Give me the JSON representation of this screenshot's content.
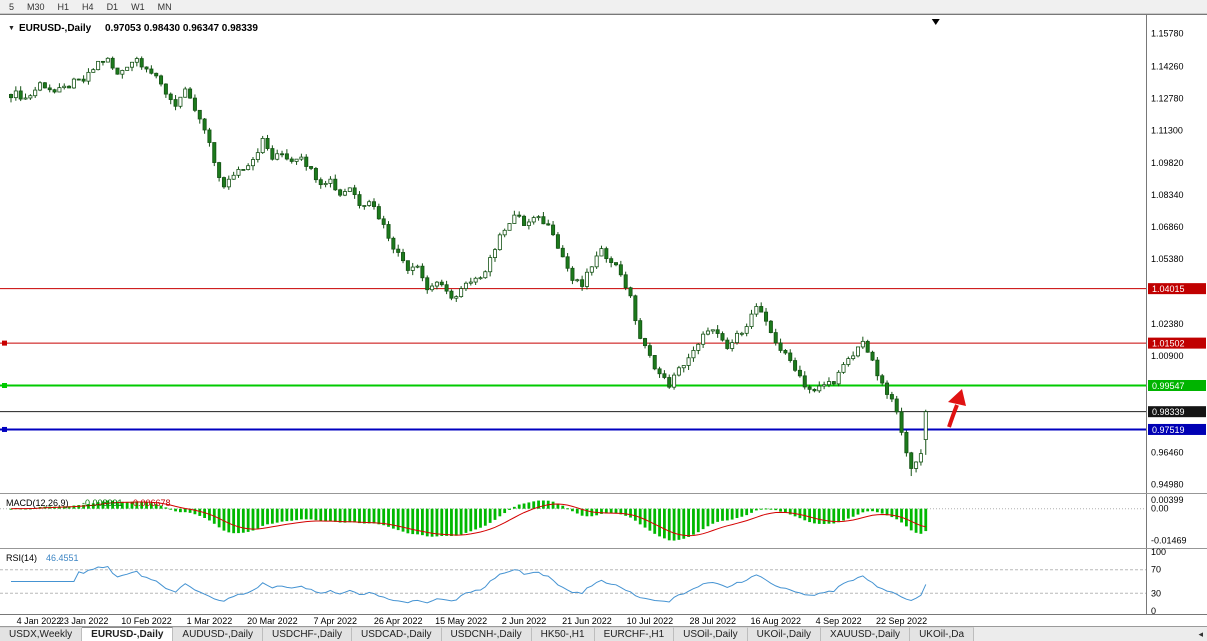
{
  "toolbar": {
    "periods": [
      "5",
      "M30",
      "H1",
      "H4",
      "D1",
      "W1",
      "MN"
    ]
  },
  "chart": {
    "symbol_icon": "▼",
    "title": "EURUSD-,Daily",
    "ohlc_text": "0.97053 0.98430 0.96347 0.98339",
    "last_bar": {
      "open": 0.97053,
      "high": 0.9843,
      "low": 0.96347,
      "close": 0.98339
    },
    "shift_marker": "▼"
  },
  "price_scale": {
    "ticks": [
      {
        "label": "1.15780",
        "value": 1.1578
      },
      {
        "label": "1.14260",
        "value": 1.1426
      },
      {
        "label": "1.12780",
        "value": 1.1278
      },
      {
        "label": "1.11300",
        "value": 1.113
      },
      {
        "label": "1.09820",
        "value": 1.0982
      },
      {
        "label": "1.08340",
        "value": 1.0834
      },
      {
        "label": "1.06860",
        "value": 1.0686
      },
      {
        "label": "1.05380",
        "value": 1.0538
      },
      {
        "label": "1.02380",
        "value": 1.0238
      },
      {
        "label": "1.00900",
        "value": 1.009
      },
      {
        "label": "0.96460",
        "value": 0.9646
      },
      {
        "label": "0.94980",
        "value": 0.9498
      }
    ],
    "badges": [
      {
        "label": "1.04015",
        "value": 1.04015,
        "color": "#c00000"
      },
      {
        "label": "1.01502",
        "value": 1.01502,
        "color": "#c00000"
      },
      {
        "label": "0.99547",
        "value": 0.99547,
        "color": "#00b400"
      },
      {
        "label": "0.98339",
        "value": 0.98339,
        "color": "#141414"
      },
      {
        "label": "0.97519",
        "value": 0.97519,
        "color": "#0000b4"
      }
    ]
  },
  "hlines": [
    {
      "name": "resistance-1",
      "value": 1.04015,
      "color": "#c80000",
      "width": 1,
      "marker": false
    },
    {
      "name": "resistance-2",
      "value": 1.01502,
      "color": "#c80000",
      "width": 1,
      "marker": true
    },
    {
      "name": "support-green",
      "value": 0.99547,
      "color": "#00ca00",
      "width": 2,
      "marker": true
    },
    {
      "name": "current-price",
      "value": 0.98339,
      "color": "#202020",
      "width": 1,
      "marker": false
    },
    {
      "name": "support-blue",
      "value": 0.97519,
      "color": "#0000c0",
      "width": 2,
      "marker": true
    }
  ],
  "chart_data": {
    "type": "candlestick",
    "symbol": "EURUSD-",
    "timeframe": "Daily",
    "ylim": [
      0.9498,
      1.1578
    ],
    "candle_count": 190,
    "x_labels": [
      "4 Jan 2022",
      "23 Jan 2022",
      "10 Feb 2022",
      "1 Mar 2022",
      "20 Mar 2022",
      "7 Apr 2022",
      "26 Apr 2022",
      "15 May 2022",
      "2 Jun 2022",
      "21 Jun 2022",
      "10 Jul 2022",
      "28 Jul 2022",
      "16 Aug 2022",
      "4 Sep 2022",
      "22 Sep 2022"
    ],
    "x_label_indices": [
      2,
      15,
      28,
      41,
      54,
      67,
      80,
      93,
      106,
      119,
      132,
      145,
      158,
      171,
      184
    ],
    "close_anchors": [
      [
        0,
        1.13
      ],
      [
        3,
        1.128
      ],
      [
        6,
        1.1345
      ],
      [
        9,
        1.131
      ],
      [
        12,
        1.1335
      ],
      [
        15,
        1.1365
      ],
      [
        18,
        1.144
      ],
      [
        20,
        1.1455
      ],
      [
        22,
        1.139
      ],
      [
        24,
        1.143
      ],
      [
        26,
        1.1465
      ],
      [
        28,
        1.143
      ],
      [
        30,
        1.136
      ],
      [
        32,
        1.131
      ],
      [
        34,
        1.1255
      ],
      [
        36,
        1.13
      ],
      [
        38,
        1.123
      ],
      [
        40,
        1.113
      ],
      [
        42,
        1.098
      ],
      [
        44,
        1.087
      ],
      [
        46,
        1.093
      ],
      [
        48,
        1.096
      ],
      [
        50,
        1.101
      ],
      [
        52,
        1.108
      ],
      [
        54,
        1.1
      ],
      [
        56,
        1.103
      ],
      [
        58,
        1.099
      ],
      [
        60,
        1.102
      ],
      [
        62,
        1.095
      ],
      [
        64,
        1.089
      ],
      [
        66,
        1.0905
      ],
      [
        68,
        1.084
      ],
      [
        70,
        1.0865
      ],
      [
        72,
        1.08
      ],
      [
        74,
        1.0815
      ],
      [
        76,
        1.073
      ],
      [
        78,
        1.065
      ],
      [
        80,
        1.056
      ],
      [
        82,
        1.0495
      ],
      [
        84,
        1.0525
      ],
      [
        86,
        1.0395
      ],
      [
        88,
        1.043
      ],
      [
        90,
        1.0385
      ],
      [
        92,
        1.036
      ],
      [
        94,
        1.0415
      ],
      [
        96,
        1.044
      ],
      [
        98,
        1.049
      ],
      [
        100,
        1.059
      ],
      [
        102,
        1.069
      ],
      [
        104,
        1.0735
      ],
      [
        106,
        1.07
      ],
      [
        108,
        1.0725
      ],
      [
        110,
        1.0705
      ],
      [
        112,
        1.067
      ],
      [
        114,
        1.055
      ],
      [
        116,
        1.0435
      ],
      [
        118,
        1.042
      ],
      [
        120,
        1.051
      ],
      [
        122,
        1.0565
      ],
      [
        124,
        1.0545
      ],
      [
        126,
        1.047
      ],
      [
        128,
        1.035
      ],
      [
        130,
        1.018
      ],
      [
        132,
        1.008
      ],
      [
        134,
        1.0005
      ],
      [
        136,
        0.9965
      ],
      [
        138,
        1.002
      ],
      [
        140,
        1.0085
      ],
      [
        142,
        1.014
      ],
      [
        144,
        1.0215
      ],
      [
        146,
        1.0185
      ],
      [
        148,
        1.0125
      ],
      [
        150,
        1.0175
      ],
      [
        152,
        1.0245
      ],
      [
        154,
        1.032
      ],
      [
        156,
        1.023
      ],
      [
        158,
        1.0165
      ],
      [
        160,
        1.009
      ],
      [
        162,
        1.0035
      ],
      [
        164,
        0.9965
      ],
      [
        166,
        0.992
      ],
      [
        168,
        0.9955
      ],
      [
        170,
        0.9985
      ],
      [
        172,
        1.0035
      ],
      [
        174,
        1.009
      ],
      [
        176,
        1.0175
      ],
      [
        178,
        1.005
      ],
      [
        180,
        0.995
      ],
      [
        182,
        0.989
      ],
      [
        184,
        0.975
      ],
      [
        186,
        0.956
      ],
      [
        187,
        0.96
      ],
      [
        188,
        0.9645
      ],
      [
        189,
        0.98339
      ]
    ]
  },
  "macd": {
    "label": "MACD(12,26,9)",
    "main_value": "-0.008991",
    "signal_value": "-0.006678",
    "scale_labels": [
      "0.00399",
      "0.00",
      "-0.01469"
    ],
    "scale_values": [
      0.00399,
      0,
      -0.01469
    ],
    "hist_color": "#00b800",
    "signal_color": "#d40000"
  },
  "rsi": {
    "label": "RSI(14)",
    "value": "46.4551",
    "scale_labels": [
      "100",
      "70",
      "30",
      "0"
    ],
    "scale_values": [
      100,
      70,
      30,
      0
    ],
    "levels": [
      70,
      30
    ],
    "line_color": "#4593d2"
  },
  "annotation_arrow": {
    "color": "#e01212"
  },
  "tabs": {
    "items": [
      "USDX,Weekly",
      "EURUSD-,Daily",
      "AUDUSD-,Daily",
      "USDCHF-,Daily",
      "USDCAD-,Daily",
      "USDCNH-,Daily",
      "HK50-,H1",
      "EURCHF-,H1",
      "USOil-,Daily",
      "UKOil-,Daily",
      "XAUUSD-,Daily",
      "UKOil-,Da"
    ],
    "active_index": 1,
    "scroll_arrow": "◂"
  },
  "colors": {
    "candle_up_fill": "#ffffff",
    "candle_down_fill": "#1c7a1c",
    "candle_outline": "#145214",
    "background": "#ffffff",
    "chrome": "#f0f0f0"
  }
}
